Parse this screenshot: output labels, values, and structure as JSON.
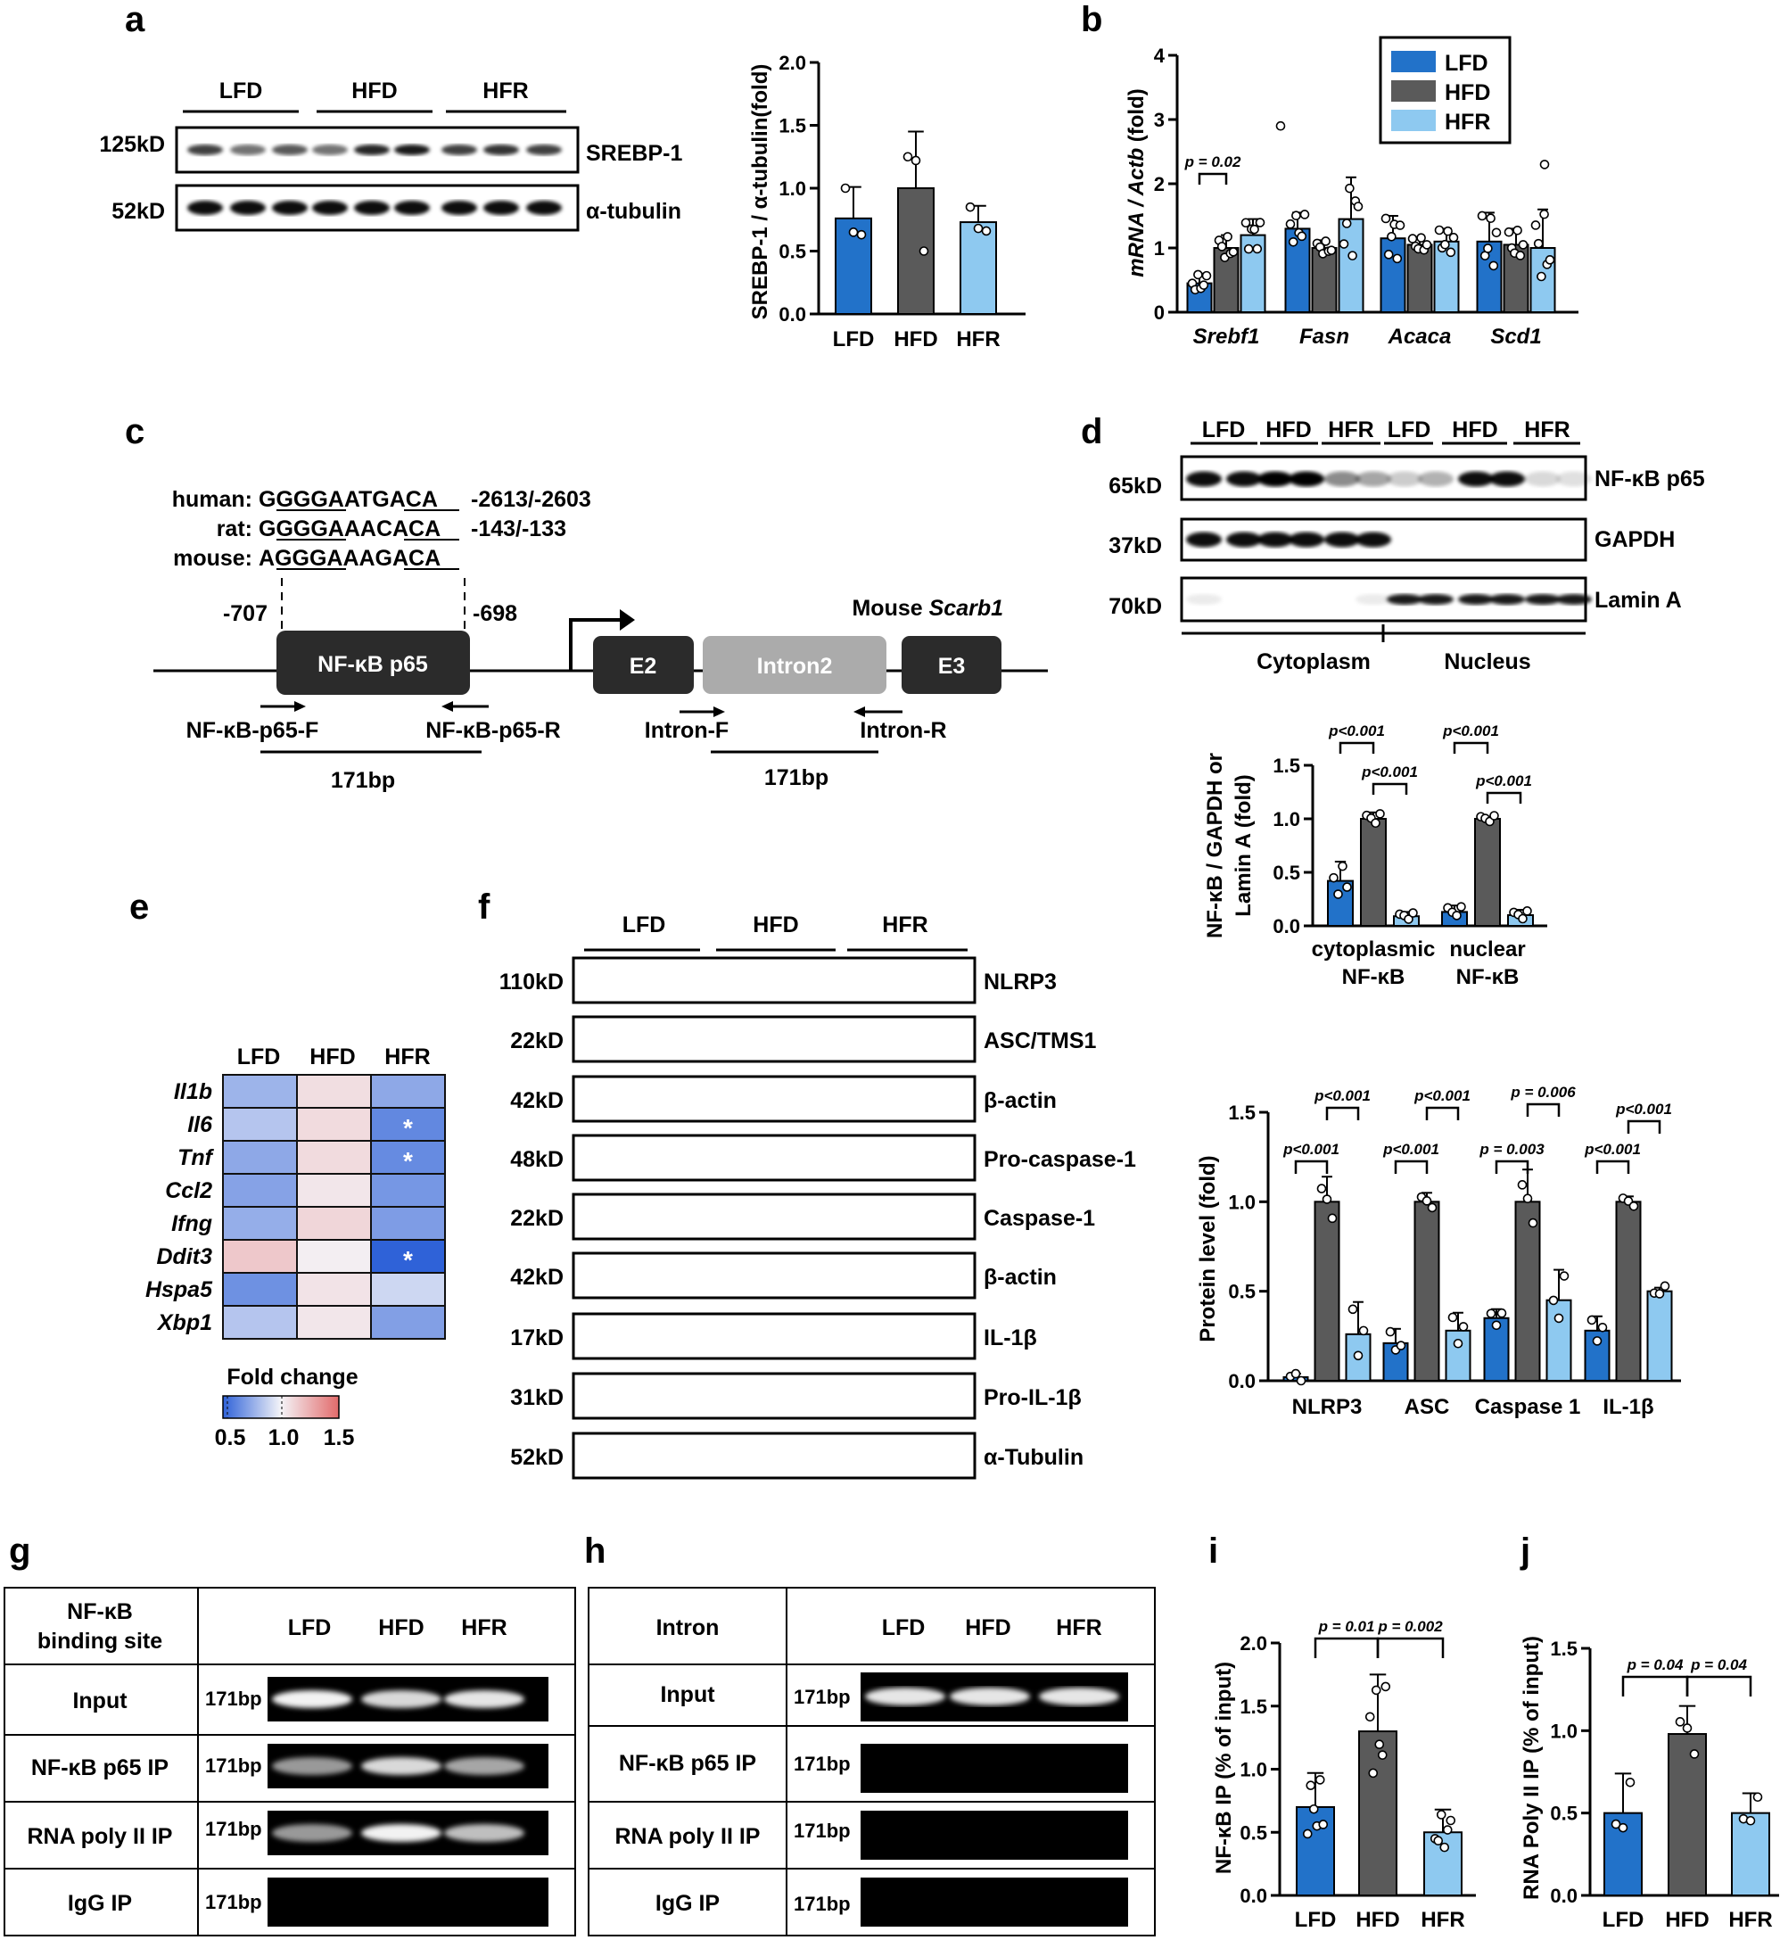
{
  "panel_letters": [
    "a",
    "b",
    "c",
    "d",
    "e",
    "f",
    "g",
    "h",
    "i",
    "j"
  ],
  "colors": {
    "LFD": "#2272c9",
    "HFD": "#5a5a5a",
    "HFR": "#8ec9f0"
  },
  "groups": [
    "LFD",
    "HFD",
    "HFR"
  ],
  "sizes_a": [
    "125kD",
    "52kD"
  ],
  "proteins_a": [
    "SREBP-1",
    "α-tubulin"
  ],
  "gene_labels_c": {
    "human_label": "human:",
    "human_seq": "GGGGAATGACA",
    "human_pos": "-2613/-2603",
    "rat_label": "rat:",
    "rat_seq": "GGGGAAACACA",
    "rat_pos": "-143/-133",
    "mouse_label": "mouse:",
    "mouse_seq": "AGGGAAAGACA",
    "pos_left": "-707",
    "pos_right": "-698",
    "gene_prefix": "Mouse ",
    "gene_name": "Scarb1",
    "box_p65": "NF-κB p65",
    "box_e2": "E2",
    "box_intron": "Intron2",
    "box_e3": "E3",
    "primer_f": "NF-κB-p65-F",
    "primer_r": "NF-κB-p65-R",
    "intron_f": "Intron-F",
    "intron_r": "Intron-R",
    "bp1": "171bp",
    "bp2": "171bp"
  },
  "labels_d": {
    "sizes": [
      "65kD",
      "37kD",
      "70kD"
    ],
    "proteins": [
      "NF-κB p65",
      "GAPDH",
      "Lamin A"
    ],
    "fractions": [
      "Cytoplasm",
      "Nucleus"
    ]
  },
  "labels_e": {
    "genes": [
      "Il1b",
      "Il6",
      "Tnf",
      "Ccl2",
      "Ifng",
      "Ddit3",
      "Hspa5",
      "Xbp1"
    ],
    "legend_title": "Fold change",
    "legend_ticks": [
      "0.5",
      "1.0",
      "1.5"
    ],
    "star": "*"
  },
  "heatmap_values": [
    [
      0.78,
      1.08,
      0.74
    ],
    [
      0.84,
      1.09,
      0.63
    ],
    [
      0.74,
      1.09,
      0.64
    ],
    [
      0.72,
      1.05,
      0.68
    ],
    [
      0.76,
      1.11,
      0.7
    ],
    [
      1.16,
      1.02,
      0.45
    ],
    [
      0.66,
      1.06,
      0.9
    ],
    [
      0.84,
      1.05,
      0.71
    ]
  ],
  "heatmap_stars": [
    [
      1,
      2
    ],
    [
      2,
      2
    ],
    [
      5,
      2
    ]
  ],
  "labels_f": {
    "sizes": [
      "110kD",
      "22kD",
      "42kD",
      "48kD",
      "22kD",
      "42kD",
      "17kD",
      "31kD",
      "52kD"
    ],
    "proteins": [
      "NLRP3",
      "ASC/TMS1",
      "β-actin",
      "Pro-caspase-1",
      "Caspase-1",
      "β-actin",
      "IL-1β",
      "Pro-IL-1β",
      "α-Tubulin"
    ]
  },
  "table_g": {
    "header": [
      "NF-κB",
      "binding site"
    ],
    "rows": [
      "Input",
      "NF-κB p65 IP",
      "RNA poly II IP",
      "IgG IP"
    ],
    "bp": "171bp"
  },
  "table_h": {
    "header": "Intron",
    "rows": [
      "Input",
      "NF-κB p65 IP",
      "RNA poly II IP",
      "IgG IP"
    ],
    "bp": "171bp"
  },
  "chart_data": [
    {
      "panel": "a",
      "type": "bar",
      "categories": [
        "LFD",
        "HFD",
        "HFR"
      ],
      "values": [
        0.76,
        1.0,
        0.73
      ],
      "errors": [
        0.25,
        0.45,
        0.13
      ],
      "points": [
        [
          1.0,
          0.65,
          0.63
        ],
        [
          1.25,
          1.22,
          0.5
        ],
        [
          0.85,
          0.68,
          0.66
        ]
      ],
      "ylabel": "SREBP-1 / α-tubulin(fold)",
      "ylim": [
        0,
        2.0
      ],
      "yticks": [
        "0.0",
        "0.5",
        "1.0",
        "1.5",
        "2.0"
      ]
    },
    {
      "panel": "b",
      "type": "bar",
      "categories": [
        "Srebf1",
        "Fasn",
        "Acaca",
        "Scd1"
      ],
      "series": [
        {
          "name": "LFD",
          "values": [
            0.45,
            1.3,
            1.15,
            1.1
          ],
          "errors": [
            0.15,
            0.25,
            0.35,
            0.45
          ]
        },
        {
          "name": "HFD",
          "values": [
            1.0,
            1.0,
            1.05,
            1.05
          ],
          "errors": [
            0.2,
            0.12,
            0.12,
            0.25
          ]
        },
        {
          "name": "HFR",
          "values": [
            1.2,
            1.45,
            1.1,
            1.0
          ],
          "errors": [
            0.25,
            0.65,
            0.2,
            0.6
          ]
        }
      ],
      "ylabel_italic": "mRNA / Actb",
      "ylabel_rest": " (fold)",
      "ylim": [
        0,
        4
      ],
      "yticks": [
        "0",
        "1",
        "2",
        "3",
        "4"
      ],
      "annotation": "p = 0.02",
      "legend": "top-right"
    },
    {
      "panel": "d",
      "type": "bar",
      "categories": [
        "cytoplasmic",
        "nuclear"
      ],
      "category_sub": [
        "NF-κB",
        "NF-κB"
      ],
      "series": [
        {
          "name": "LFD",
          "values": [
            0.42,
            0.13
          ],
          "errors": [
            0.18,
            0.06
          ]
        },
        {
          "name": "HFD",
          "values": [
            1.0,
            1.0
          ],
          "errors": [
            0.06,
            0.02
          ]
        },
        {
          "name": "HFR",
          "values": [
            0.09,
            0.1
          ],
          "errors": [
            0.04,
            0.05
          ]
        }
      ],
      "ylabel": "NF-κB / GAPDH or Lamin A (fold)",
      "ylim": [
        0,
        1.5
      ],
      "yticks": [
        "0.0",
        "0.5",
        "1.0",
        "1.5"
      ],
      "annotations": [
        "p<0.001",
        "p<0.001",
        "p<0.001",
        "p<0.001"
      ]
    },
    {
      "panel": "f",
      "type": "bar",
      "categories": [
        "NLRP3",
        "ASC",
        "Caspase 1",
        "IL-1β"
      ],
      "series": [
        {
          "name": "LFD",
          "values": [
            0.02,
            0.21,
            0.35,
            0.28
          ],
          "errors": [
            0.02,
            0.08,
            0.05,
            0.08
          ]
        },
        {
          "name": "HFD",
          "values": [
            1.0,
            1.0,
            1.0,
            1.0
          ],
          "errors": [
            0.14,
            0.05,
            0.18,
            0.03
          ]
        },
        {
          "name": "HFR",
          "values": [
            0.26,
            0.28,
            0.45,
            0.5
          ],
          "errors": [
            0.18,
            0.1,
            0.17,
            0.02
          ]
        }
      ],
      "ylabel": "Protein level (fold)",
      "ylim": [
        0,
        1.5
      ],
      "yticks": [
        "0.0",
        "0.5",
        "1.0",
        "1.5"
      ],
      "annotations": [
        "p<0.001",
        "p<0.001",
        "p<0.001",
        "p<0.001",
        "p = 0.003",
        "p = 0.006",
        "p<0.001",
        "p<0.001"
      ]
    },
    {
      "panel": "i",
      "type": "bar",
      "categories": [
        "LFD",
        "HFD",
        "HFR"
      ],
      "values": [
        0.7,
        1.3,
        0.5
      ],
      "errors": [
        0.27,
        0.45,
        0.18
      ],
      "ylabel": "NF-κB IP (% of input)",
      "ylim": [
        0,
        2.0
      ],
      "yticks": [
        "0.0",
        "0.5",
        "1.0",
        "1.5",
        "2.0"
      ],
      "annotations": [
        "p = 0.01",
        "p = 0.002"
      ]
    },
    {
      "panel": "j",
      "type": "bar",
      "categories": [
        "LFD",
        "HFD",
        "HFR"
      ],
      "values": [
        0.5,
        0.98,
        0.5
      ],
      "errors": [
        0.24,
        0.17,
        0.12
      ],
      "ylabel": "RNA Poly II IP (% of input)",
      "ylim": [
        0,
        1.5
      ],
      "yticks": [
        "0.0",
        "0.5",
        "1.0",
        "1.5"
      ],
      "annotations": [
        "p = 0.04",
        "p = 0.04"
      ]
    }
  ]
}
